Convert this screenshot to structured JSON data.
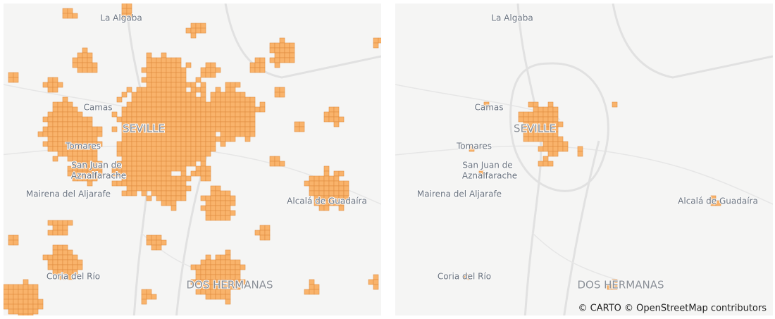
{
  "maps": [
    {
      "labels": [
        "La Algaba",
        "Camas",
        "SEVILLE",
        "Tomares",
        "San Juan de",
        "Aznalfarache",
        "Mairena del Aljarafe",
        "Alcalá de Guadaíra",
        "Coria del Río",
        "DOS HERMANAS"
      ]
    },
    {
      "labels": [
        "La Algaba",
        "Camas",
        "SEVILLE",
        "Tomares",
        "San Juan de",
        "Aznalfarache",
        "Mairena del Aljarafe",
        "Alcalá de Guadaíra",
        "Coria del Río",
        "DOS HERMANAS"
      ]
    }
  ],
  "attribution": "© CARTO © OpenStreetMap contributors"
}
